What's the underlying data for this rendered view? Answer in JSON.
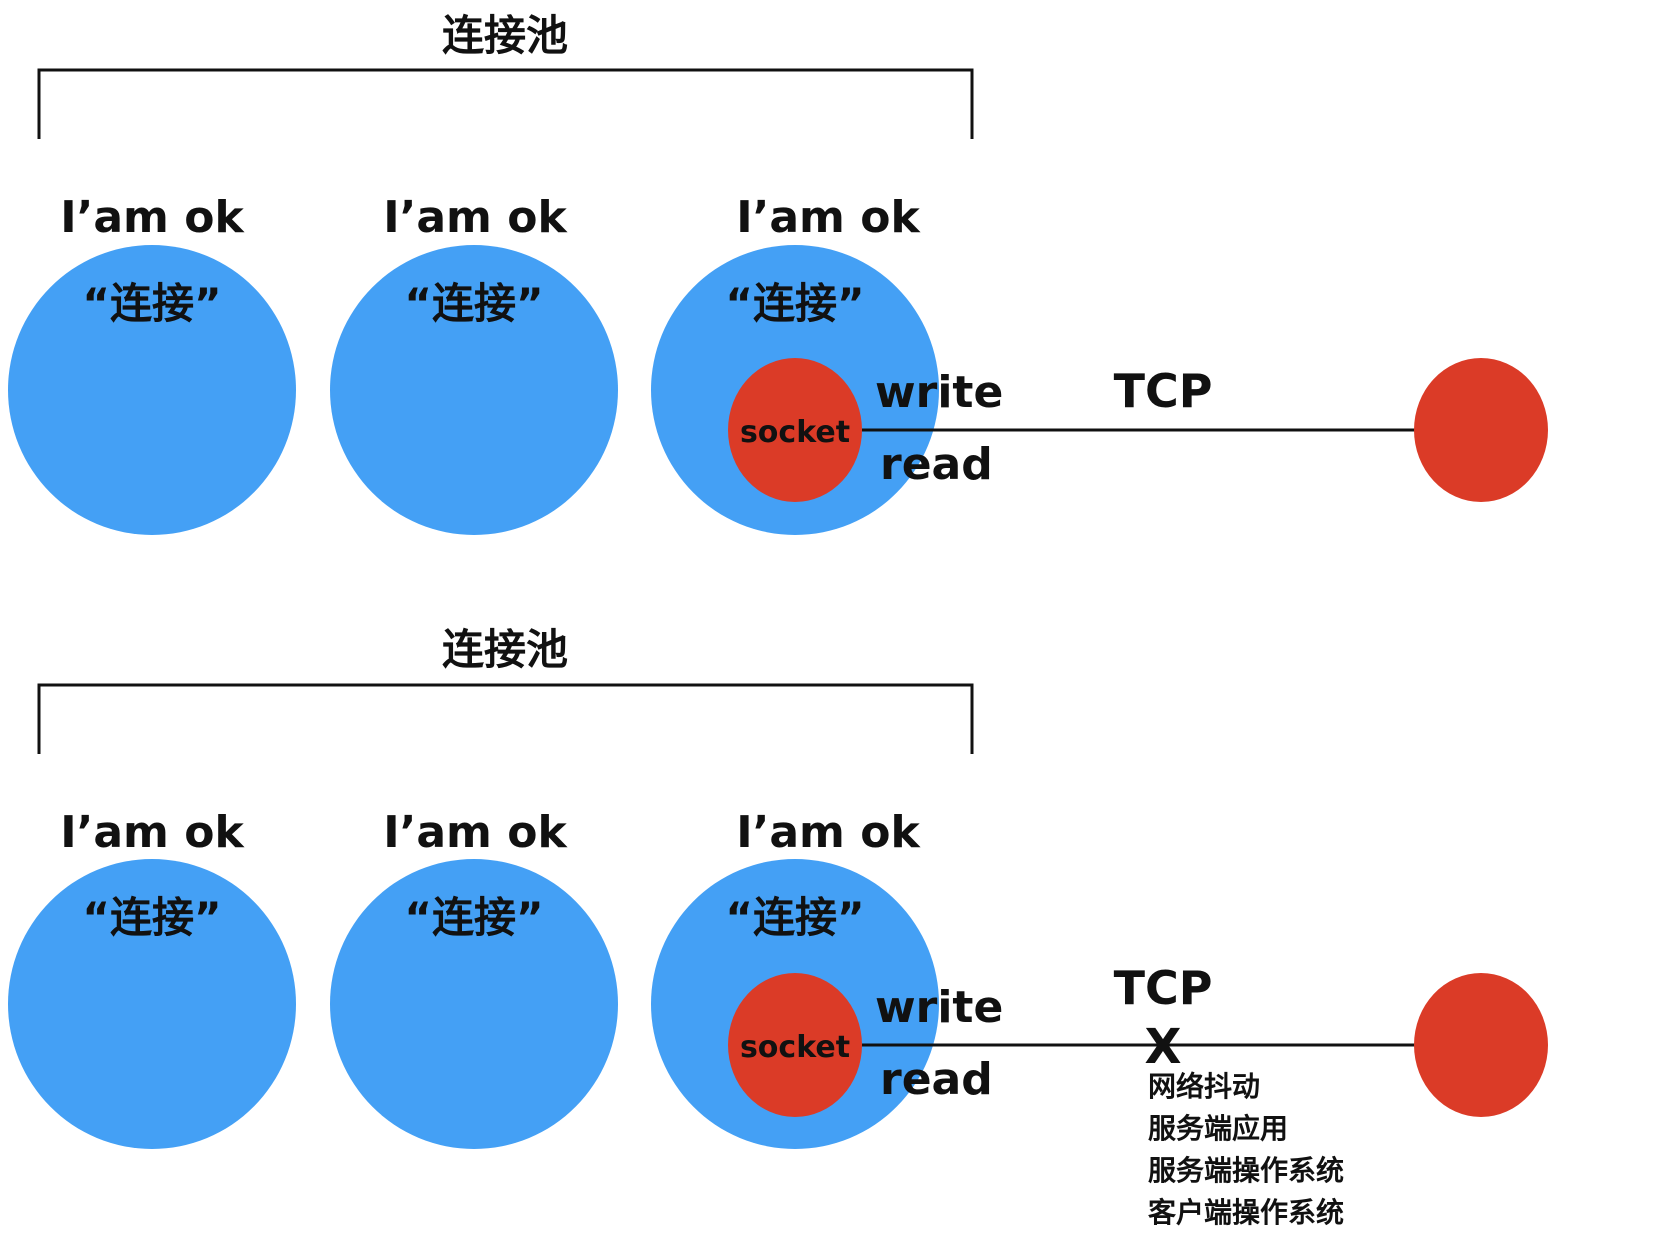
{
  "colors": {
    "connection_fill": "#44A0F5",
    "socket_fill": "#DB3B27",
    "server_fill": "#DB3B27",
    "line": "#111111",
    "text": "#111111"
  },
  "top": {
    "pool_label": "连接池",
    "connections": [
      {
        "status": "I’am ok",
        "label": "“连接”"
      },
      {
        "status": "I’am ok",
        "label": "“连接”"
      },
      {
        "status": "I’am ok",
        "label": "“连接”"
      }
    ],
    "socket_label": "socket",
    "write_label": "write",
    "read_label": "read",
    "tcp_label": "TCP"
  },
  "bottom": {
    "pool_label": "连接池",
    "connections": [
      {
        "status": "I’am ok",
        "label": "“连接”"
      },
      {
        "status": "I’am ok",
        "label": "“连接”"
      },
      {
        "status": "I’am ok",
        "label": "“连接”"
      }
    ],
    "socket_label": "socket",
    "write_label": "write",
    "read_label": "read",
    "tcp_label": "TCP",
    "break_mark": "X",
    "causes": [
      "网络抖动",
      "服务端应用",
      "服务端操作系统",
      "客户端操作系统"
    ]
  }
}
